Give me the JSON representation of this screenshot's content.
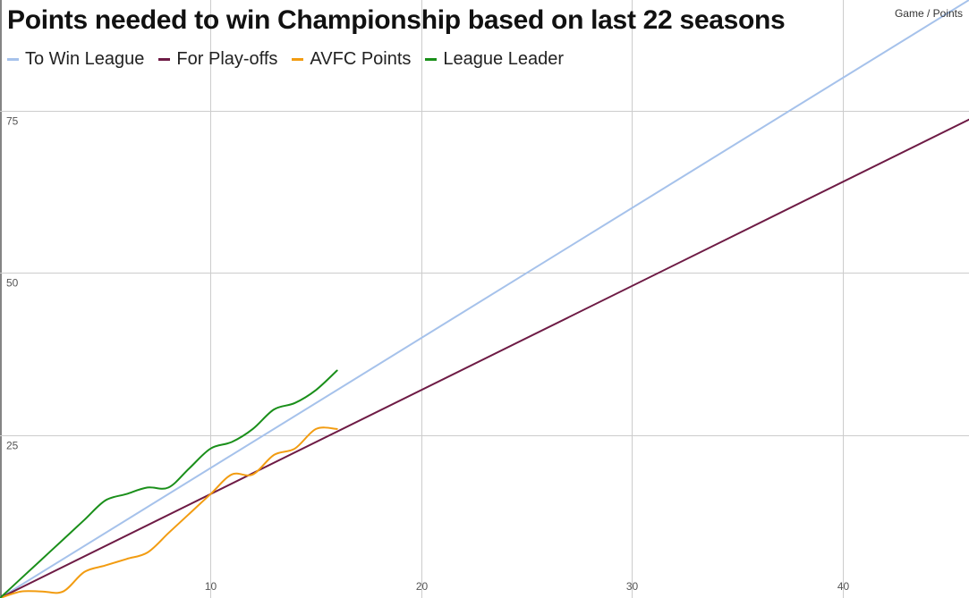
{
  "chart_data": {
    "type": "line",
    "title": "Points needed to win Championship based on last 22 seasons",
    "corner_note": "Game / Points",
    "legend_position": "top-left",
    "grid": true,
    "xlim": [
      0,
      46
    ],
    "ylim": [
      0,
      92
    ],
    "x_ticks": [
      10,
      20,
      30,
      40
    ],
    "y_ticks": [
      25,
      50,
      75
    ],
    "series": [
      {
        "name": "To Win League",
        "color": "#a6c2eb",
        "points": [
          [
            0,
            0
          ],
          [
            46,
            92
          ]
        ]
      },
      {
        "name": "For Play-offs",
        "color": "#6e1b45",
        "points": [
          [
            0,
            0
          ],
          [
            46,
            73.6
          ]
        ]
      },
      {
        "name": "AVFC Points",
        "color": "#f29c11",
        "points": [
          [
            0,
            0
          ],
          [
            1,
            1
          ],
          [
            2,
            1
          ],
          [
            3,
            1
          ],
          [
            4,
            4
          ],
          [
            5,
            5
          ],
          [
            6,
            6
          ],
          [
            7,
            7
          ],
          [
            8,
            10
          ],
          [
            9,
            13
          ],
          [
            10,
            16
          ],
          [
            11,
            19
          ],
          [
            12,
            19
          ],
          [
            13,
            22
          ],
          [
            14,
            23
          ],
          [
            15,
            26
          ],
          [
            16,
            26
          ]
        ]
      },
      {
        "name": "League Leader",
        "color": "#1a8f1a",
        "points": [
          [
            0,
            0
          ],
          [
            1,
            3
          ],
          [
            2,
            6
          ],
          [
            3,
            9
          ],
          [
            4,
            12
          ],
          [
            5,
            15
          ],
          [
            6,
            16
          ],
          [
            7,
            17
          ],
          [
            8,
            17
          ],
          [
            9,
            20
          ],
          [
            10,
            23
          ],
          [
            11,
            24
          ],
          [
            12,
            26
          ],
          [
            13,
            29
          ],
          [
            14,
            30
          ],
          [
            15,
            32
          ],
          [
            16,
            35
          ]
        ]
      }
    ]
  }
}
